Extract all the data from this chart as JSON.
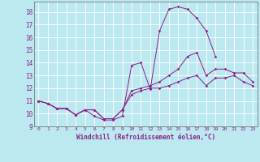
{
  "xlabel": "Windchill (Refroidissement éolien,°C)",
  "xlim": [
    -0.5,
    23.5
  ],
  "ylim": [
    9,
    18.8
  ],
  "yticks": [
    9,
    10,
    11,
    12,
    13,
    14,
    15,
    16,
    17,
    18
  ],
  "xticks": [
    0,
    1,
    2,
    3,
    4,
    5,
    6,
    7,
    8,
    9,
    10,
    11,
    12,
    13,
    14,
    15,
    16,
    17,
    18,
    19,
    20,
    21,
    22,
    23
  ],
  "background_color": "#bce8f0",
  "line_color": "#882288",
  "grid_color": "#ffffff",
  "line_peak": [
    11.0,
    10.8,
    10.4,
    10.4,
    9.9,
    10.3,
    9.8,
    9.5,
    9.5,
    9.8,
    13.8,
    14.0,
    11.9,
    16.5,
    18.2,
    18.4,
    18.2,
    17.5,
    16.5,
    14.5,
    null,
    null,
    null,
    null
  ],
  "line_mid": [
    11.0,
    10.8,
    10.4,
    10.4,
    9.9,
    10.3,
    10.3,
    9.6,
    9.6,
    10.3,
    11.8,
    12.0,
    12.2,
    12.5,
    13.0,
    13.5,
    14.5,
    14.8,
    13.0,
    13.5,
    13.5,
    13.2,
    13.2,
    12.5
  ],
  "line_low": [
    11.0,
    10.8,
    10.4,
    10.4,
    9.9,
    10.3,
    10.3,
    9.6,
    9.6,
    10.3,
    11.5,
    11.8,
    12.0,
    12.0,
    12.2,
    12.5,
    12.8,
    13.0,
    12.2,
    12.8,
    12.8,
    13.0,
    12.5,
    12.2
  ],
  "hours": [
    0,
    1,
    2,
    3,
    4,
    5,
    6,
    7,
    8,
    9,
    10,
    11,
    12,
    13,
    14,
    15,
    16,
    17,
    18,
    19,
    20,
    21,
    22,
    23
  ]
}
